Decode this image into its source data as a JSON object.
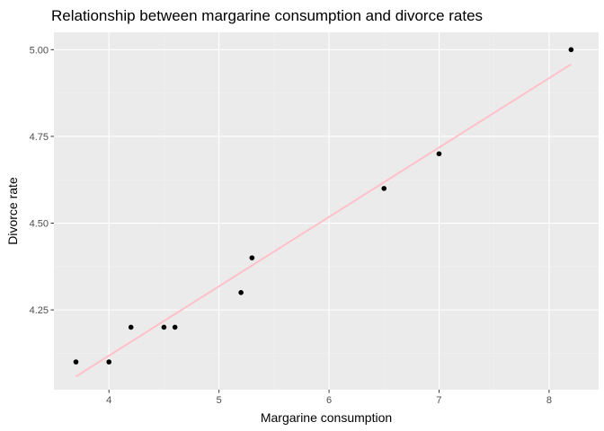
{
  "chart_data": {
    "type": "scatter",
    "title": "Relationship between margarine consumption and divorce rates",
    "xlabel": "Margarine consumption",
    "ylabel": "Divorce rate",
    "xlim": [
      3.5,
      8.45
    ],
    "ylim": [
      4.02,
      5.05
    ],
    "x_ticks": [
      4,
      5,
      6,
      7,
      8
    ],
    "x_tick_labels": [
      "4",
      "5",
      "6",
      "7",
      "8"
    ],
    "y_ticks": [
      4.25,
      4.5,
      4.75,
      5.0
    ],
    "y_tick_labels": [
      "4.25",
      "4.50",
      "4.75",
      "5.00"
    ],
    "grid": true,
    "points": [
      {
        "x": 3.7,
        "y": 4.1
      },
      {
        "x": 4.0,
        "y": 4.1
      },
      {
        "x": 4.2,
        "y": 4.2
      },
      {
        "x": 4.5,
        "y": 4.2
      },
      {
        "x": 4.6,
        "y": 4.2
      },
      {
        "x": 5.2,
        "y": 4.3
      },
      {
        "x": 5.3,
        "y": 4.4
      },
      {
        "x": 6.5,
        "y": 4.6
      },
      {
        "x": 7.0,
        "y": 4.7
      },
      {
        "x": 8.2,
        "y": 5.0
      }
    ],
    "trend_line": {
      "x": [
        3.7,
        8.2
      ],
      "y": [
        4.058,
        4.958
      ],
      "color": "#ffc0cb"
    },
    "colors": {
      "panel_background": "#ebebeb",
      "grid_major": "#ffffff",
      "grid_minor": "#f2f2f2",
      "point": "#000000",
      "tick": "#333333"
    }
  }
}
